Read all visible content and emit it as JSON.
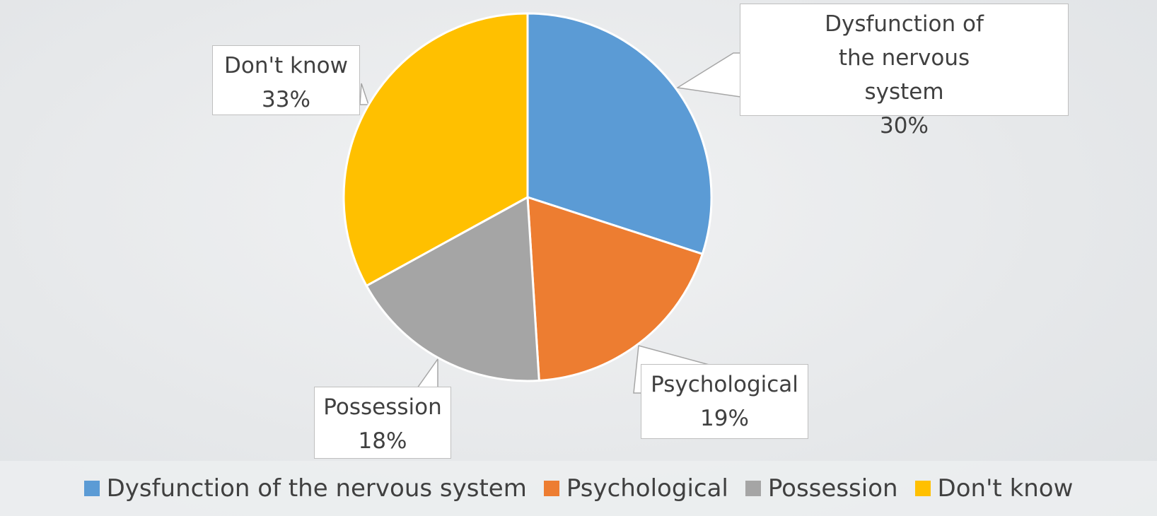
{
  "chart_data": {
    "type": "pie",
    "categories": [
      "Dysfunction of the nervous system",
      "Psychological",
      "Possession",
      "Don't know"
    ],
    "values": [
      30,
      19,
      18,
      33
    ],
    "value_labels": [
      "30%",
      "19%",
      "18%",
      "33%"
    ],
    "colors": [
      "#5b9bd5",
      "#ed7d31",
      "#a5a5a5",
      "#ffc000"
    ],
    "legend": "bottom"
  }
}
